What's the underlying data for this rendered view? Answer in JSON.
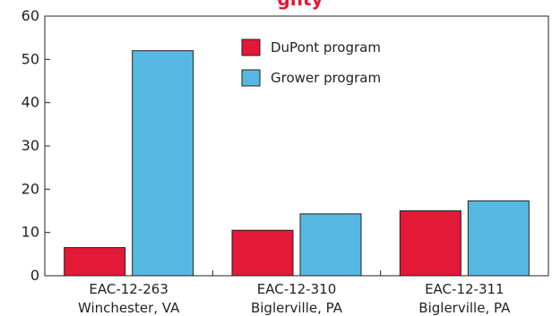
{
  "title": "",
  "chart_data": {
    "type": "bar",
    "title": "",
    "xlabel": "",
    "ylabel": "",
    "ylim": [
      0,
      60
    ],
    "yticks": [
      0,
      10,
      20,
      30,
      40,
      50,
      60
    ],
    "grid": false,
    "legend_position": "top-center",
    "categories": [
      {
        "code": "EAC-12-263",
        "location": "Winchester, VA"
      },
      {
        "code": "EAC-12-310",
        "location": "Biglerville, PA"
      },
      {
        "code": "EAC-12-311",
        "location": "Biglerville, PA"
      }
    ],
    "series": [
      {
        "name": "DuPont program",
        "color": "#e31937",
        "values": [
          6.5,
          10.5,
          15
        ]
      },
      {
        "name": "Grower program",
        "color": "#56b8e2",
        "values": [
          52,
          14.3,
          17.3
        ]
      }
    ]
  },
  "partial_title": "ghty"
}
